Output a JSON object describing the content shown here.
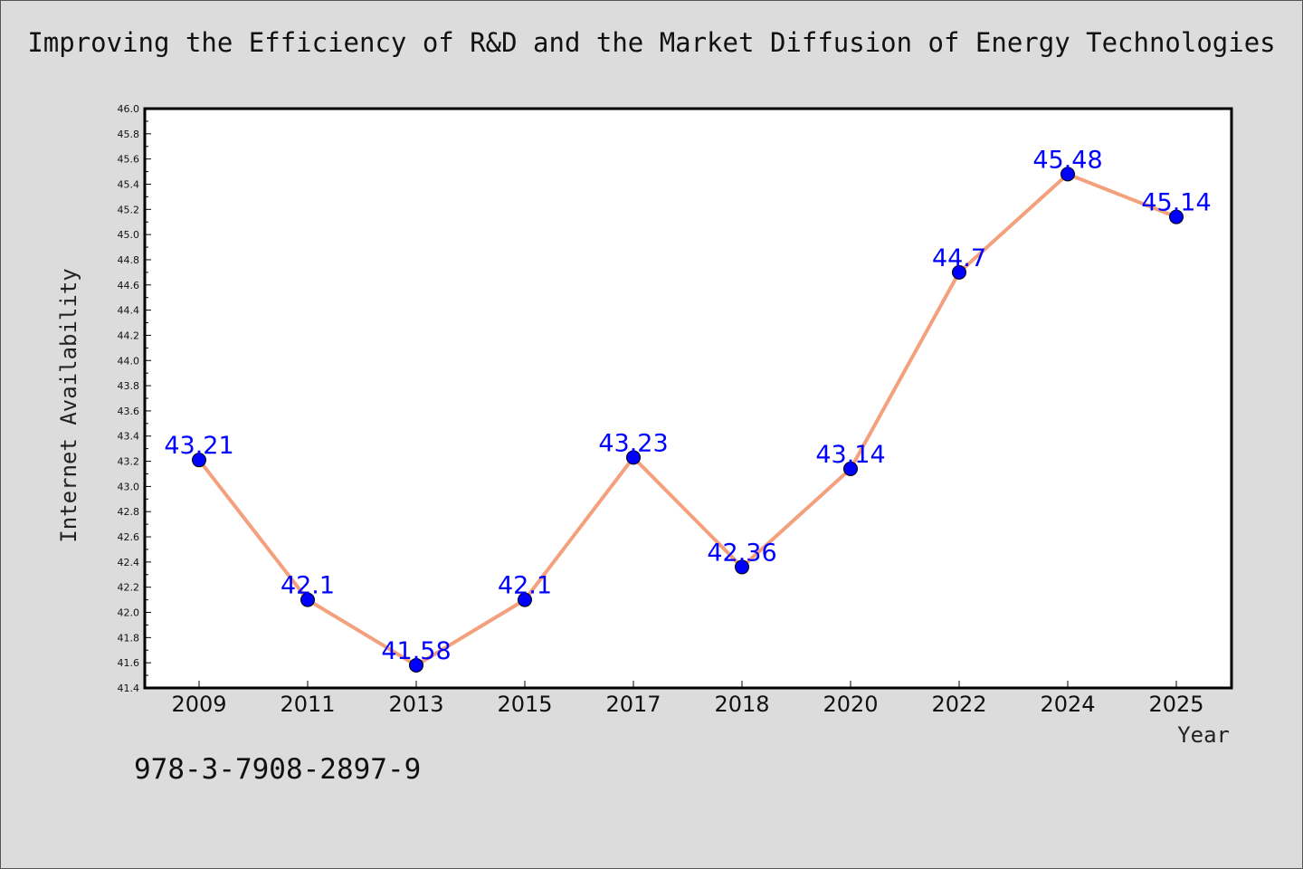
{
  "chart_data": {
    "type": "line",
    "title": "Improving the Efficiency of R&D and the Market Diffusion of Energy Technologies",
    "xlabel": "Year",
    "ylabel": "Internet Availability",
    "categories": [
      "2009",
      "2011",
      "2013",
      "2015",
      "2017",
      "2018",
      "2020",
      "2022",
      "2024",
      "2025"
    ],
    "series": [
      {
        "values": [
          43.21,
          42.1,
          41.58,
          42.1,
          43.23,
          42.36,
          43.14,
          44.7,
          45.48,
          45.14
        ],
        "data_labels": [
          "43.21",
          "42.1",
          "41.58",
          "42.1",
          "43.23",
          "42.36",
          "43.14",
          "44.7",
          "45.48",
          "45.14"
        ],
        "line_color": "#f4a07c",
        "marker_color": "#0000ff"
      }
    ],
    "ylim": [
      41.4,
      46.0
    ],
    "yticks": [
      "41.4",
      "41.6",
      "41.8",
      "42.0",
      "42.2",
      "42.4",
      "42.6",
      "42.8",
      "43.0",
      "43.2",
      "43.4",
      "43.6",
      "43.8",
      "44.0",
      "44.2",
      "44.4",
      "44.6",
      "44.8",
      "45.0",
      "45.2",
      "45.4",
      "45.6",
      "45.8",
      "46.0"
    ],
    "grid": false,
    "legend": "none",
    "background": "#dcdcdc",
    "plot_background": "#ffffff"
  },
  "footer": {
    "isbn": "978-3-7908-2897-9"
  }
}
